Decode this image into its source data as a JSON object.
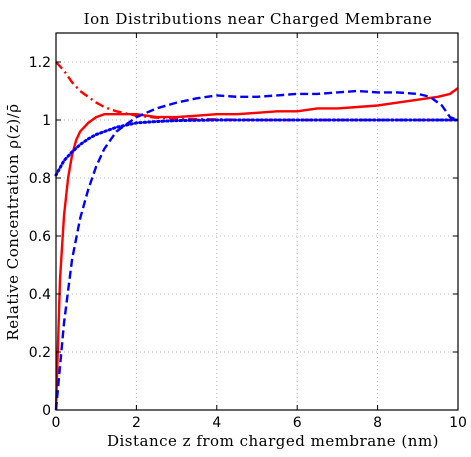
{
  "chart_data": {
    "type": "line",
    "title": "Ion Distributions near Charged Membrane",
    "xlabel": "Distance z from charged membrane (nm)",
    "ylabel": "Relative Concentration ρ(z)/ρ̄",
    "xlim": [
      0,
      10
    ],
    "ylim": [
      0,
      1.3
    ],
    "x_ticks": [
      "0",
      "2",
      "4",
      "6",
      "8",
      "10"
    ],
    "y_ticks": [
      "0",
      "0.2",
      "0.4",
      "0.6",
      "0.8",
      "1",
      "1.2"
    ],
    "grid": true,
    "series": [
      {
        "style": "solid",
        "color": "#ff0000",
        "x": [
          0,
          0.1,
          0.2,
          0.3,
          0.4,
          0.5,
          0.6,
          0.8,
          1.0,
          1.2,
          1.5,
          2.0,
          2.5,
          3.0,
          3.5,
          4.0,
          4.5,
          5.0,
          5.5,
          6.0,
          6.5,
          7.0,
          7.5,
          8.0,
          8.5,
          9.0,
          9.5,
          9.8,
          10.0
        ],
        "y": [
          0.0,
          0.45,
          0.67,
          0.8,
          0.88,
          0.93,
          0.96,
          0.99,
          1.01,
          1.02,
          1.02,
          1.02,
          1.01,
          1.01,
          1.015,
          1.02,
          1.02,
          1.025,
          1.03,
          1.03,
          1.04,
          1.04,
          1.045,
          1.05,
          1.06,
          1.07,
          1.08,
          1.09,
          1.11
        ]
      },
      {
        "style": "dash-dot",
        "color": "#ff0000",
        "x": [
          0,
          0.2,
          0.4,
          0.6,
          0.8,
          1.0,
          1.2,
          1.5,
          2.0,
          2.5,
          3.0,
          4.0,
          5.0,
          6.0,
          7.0,
          8.0,
          9.0,
          10.0
        ],
        "y": [
          1.2,
          1.17,
          1.13,
          1.1,
          1.08,
          1.06,
          1.045,
          1.03,
          1.015,
          1.008,
          1.004,
          1.002,
          1.0,
          1.0,
          1.0,
          1.0,
          1.0,
          1.0
        ]
      },
      {
        "style": "dashed",
        "color": "#0000ff",
        "x": [
          0,
          0.2,
          0.4,
          0.6,
          0.8,
          1.0,
          1.2,
          1.5,
          2.0,
          2.5,
          3.0,
          3.5,
          4.0,
          4.5,
          5.0,
          5.5,
          6.0,
          6.5,
          7.0,
          7.5,
          8.0,
          8.5,
          9.0,
          9.3,
          9.6,
          9.8,
          10.0
        ],
        "y": [
          0.0,
          0.3,
          0.52,
          0.66,
          0.76,
          0.84,
          0.9,
          0.96,
          1.01,
          1.04,
          1.06,
          1.075,
          1.085,
          1.08,
          1.08,
          1.085,
          1.09,
          1.09,
          1.095,
          1.1,
          1.095,
          1.095,
          1.09,
          1.08,
          1.05,
          1.01,
          1.0
        ]
      },
      {
        "style": "dotted",
        "color": "#0000ff",
        "x": [
          0,
          0.2,
          0.4,
          0.6,
          0.8,
          1.0,
          1.2,
          1.5,
          2.0,
          2.5,
          3.0,
          4.0,
          5.0,
          6.0,
          7.0,
          8.0,
          9.0,
          10.0
        ],
        "y": [
          0.81,
          0.86,
          0.89,
          0.915,
          0.935,
          0.95,
          0.96,
          0.975,
          0.99,
          0.995,
          0.998,
          1.0,
          1.0,
          1.0,
          1.0,
          1.0,
          1.0,
          1.0
        ]
      }
    ]
  }
}
